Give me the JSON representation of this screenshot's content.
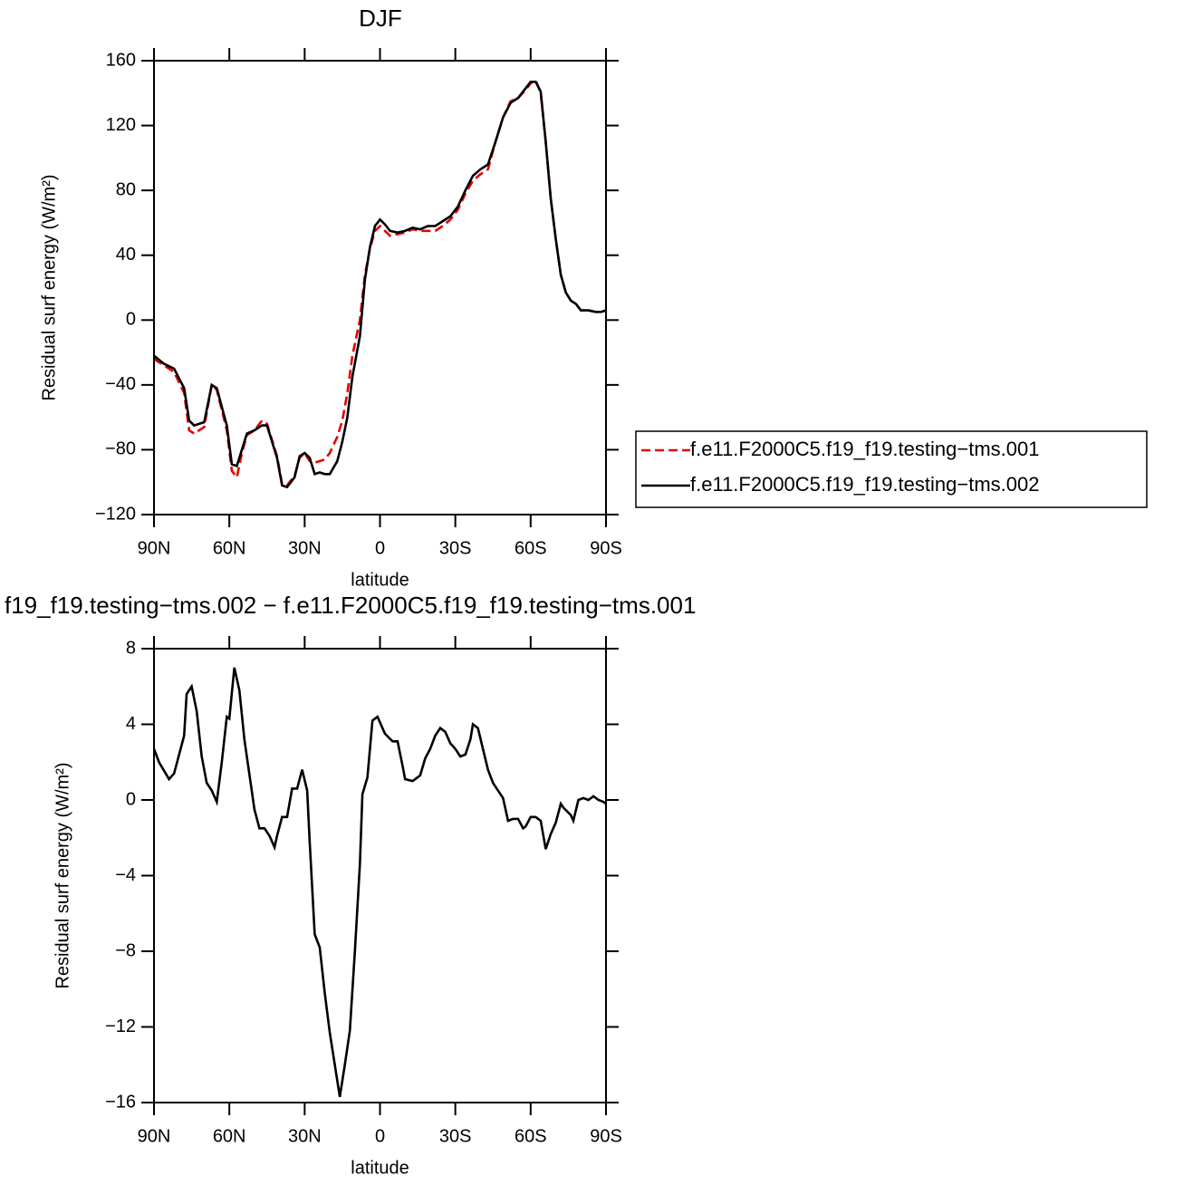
{
  "chart_data": [
    {
      "type": "line",
      "title": "DJF",
      "xlabel": "latitude",
      "ylabel": "Residual surf energy (W/m²)",
      "x": [
        90,
        86,
        82,
        78,
        76,
        74,
        70,
        67,
        65,
        61,
        59,
        57,
        55,
        53,
        50,
        47,
        45,
        41,
        39,
        37,
        34,
        32,
        30,
        28,
        26,
        24,
        22,
        20,
        17,
        15,
        13,
        11,
        8,
        6,
        4,
        2,
        0,
        -2,
        -4,
        -7,
        -10,
        -13,
        -16,
        -19,
        -22,
        -25,
        -28,
        -31,
        -34,
        -37,
        -40,
        -43,
        -46,
        -49,
        -52,
        -55,
        -58,
        -60,
        -62,
        -64,
        -66,
        -68,
        -70,
        -72,
        -74,
        -76,
        -78,
        -80,
        -83,
        -86,
        -88,
        -90
      ],
      "xlim": [
        90,
        -90
      ],
      "xticks": [
        {
          "value": 90,
          "label": "90N"
        },
        {
          "value": 60,
          "label": "60N"
        },
        {
          "value": 30,
          "label": "30N"
        },
        0,
        {
          "value": -30,
          "label": "30S"
        },
        {
          "value": -60,
          "label": "60S"
        },
        {
          "value": -90,
          "label": "90S"
        }
      ],
      "ylim": [
        -120,
        160
      ],
      "yticks": [
        {
          "value": -120,
          "label": "−120"
        },
        {
          "value": -80,
          "label": "−80"
        },
        {
          "value": -40,
          "label": "−40"
        },
        0,
        40,
        80,
        120,
        160
      ],
      "legend": "right",
      "series": [
        {
          "name": "f.e11.F2000C5.f19_f19.testing−tms.001",
          "color": "#e60000",
          "style": "dashed",
          "values": [
            -24,
            -28,
            -32,
            -45,
            -68,
            -70,
            -66,
            -40,
            -43,
            -68,
            -93,
            -97,
            -82,
            -71,
            -68,
            -62,
            -64,
            -84,
            -101,
            -102,
            -96,
            -85,
            -82,
            -87,
            -88,
            -87,
            -86,
            -82,
            -72,
            -62,
            -45,
            -22,
            0,
            28,
            44,
            55,
            58,
            55,
            52,
            53,
            54,
            56,
            55,
            55,
            55,
            58,
            62,
            68,
            78,
            86,
            90,
            93,
            110,
            125,
            135,
            137,
            142,
            146,
            148,
            140,
            110,
            75,
            50,
            28,
            17,
            12,
            10,
            6,
            6,
            5,
            5,
            6
          ]
        },
        {
          "name": "f.e11.F2000C5.f19_f19.testing−tms.002",
          "color": "#000000",
          "style": "solid",
          "values": [
            -22,
            -27,
            -30,
            -42,
            -62,
            -65,
            -63,
            -40,
            -42,
            -65,
            -89,
            -90,
            -80,
            -70,
            -68,
            -65,
            -65,
            -85,
            -102,
            -103,
            -97,
            -84,
            -82,
            -85,
            -95,
            -94,
            -95,
            -95,
            -87,
            -75,
            -60,
            -35,
            -10,
            25,
            45,
            58,
            62,
            59,
            55,
            54,
            55,
            57,
            56,
            58,
            58,
            61,
            64,
            70,
            80,
            89,
            93,
            96,
            110,
            125,
            134,
            137,
            143,
            147,
            147,
            141,
            110,
            75,
            50,
            28,
            17,
            12,
            10,
            6,
            6,
            5,
            5,
            6
          ]
        }
      ]
    },
    {
      "type": "line",
      "title": "f19_f19.testing−tms.002 − f.e11.F2000C5.f19_f19.testing−tms.001",
      "xlabel": "latitude",
      "ylabel": "Residual surf energy (W/m²)",
      "x": [
        90,
        88,
        84,
        82,
        78,
        77,
        75,
        73,
        71,
        69,
        67,
        65,
        63,
        61,
        60,
        58,
        56,
        54,
        50,
        48,
        46,
        44,
        42,
        41,
        39,
        37,
        35,
        33,
        31,
        29,
        28,
        26,
        24,
        22,
        20,
        18,
        16,
        14,
        12,
        10,
        8,
        7,
        5,
        3,
        1,
        -1,
        -2,
        -5,
        -7,
        -9,
        -10,
        -13,
        -14,
        -16,
        -18,
        -20,
        -22,
        -24,
        -26,
        -28,
        -30,
        -32,
        -34,
        -36,
        -37,
        -39,
        -41,
        -43,
        -45,
        -47,
        -49,
        -51,
        -53,
        -55,
        -57,
        -58,
        -60,
        -62,
        -64,
        -66,
        -68,
        -70,
        -72,
        -73,
        -76,
        -77,
        -79,
        -81,
        -83,
        -85,
        -87,
        -89,
        -90
      ],
      "xlim": [
        90,
        -90
      ],
      "xticks": [
        {
          "value": 90,
          "label": "90N"
        },
        {
          "value": 60,
          "label": "60N"
        },
        {
          "value": 30,
          "label": "30N"
        },
        0,
        {
          "value": -30,
          "label": "30S"
        },
        {
          "value": -60,
          "label": "60S"
        },
        {
          "value": -90,
          "label": "90S"
        }
      ],
      "ylim": [
        -16,
        8
      ],
      "yticks": [
        {
          "value": -16,
          "label": "−16"
        },
        {
          "value": -12,
          "label": "−12"
        },
        {
          "value": -8,
          "label": "−8"
        },
        {
          "value": -4,
          "label": "−4"
        },
        0,
        4,
        8
      ],
      "series": [
        {
          "color": "#000000",
          "style": "solid",
          "values": [
            2.7,
            2.0,
            1.1,
            1.4,
            3.4,
            5.6,
            6.0,
            4.7,
            2.3,
            0.9,
            0.5,
            -0.1,
            2.0,
            4.4,
            4.3,
            7.0,
            5.8,
            3.2,
            -0.5,
            -1.5,
            -1.5,
            -1.9,
            -2.5,
            -1.9,
            -0.9,
            -0.9,
            0.6,
            0.6,
            1.6,
            0.5,
            -2.2,
            -7.1,
            -7.8,
            -10.2,
            -12.3,
            -14.0,
            -15.7,
            -14.0,
            -12.2,
            -8.0,
            -3.4,
            0.3,
            1.2,
            4.2,
            4.4,
            3.8,
            3.5,
            3.1,
            3.1,
            1.8,
            1.1,
            1.0,
            1.1,
            1.3,
            2.2,
            2.7,
            3.4,
            3.8,
            3.6,
            3.0,
            2.7,
            2.3,
            2.4,
            3.2,
            4.0,
            3.8,
            2.7,
            1.6,
            0.9,
            0.5,
            0.1,
            -1.1,
            -1.0,
            -1.0,
            -1.5,
            -1.4,
            -0.9,
            -0.9,
            -1.1,
            -2.6,
            -1.8,
            -1.2,
            -0.2,
            -0.4,
            -0.8,
            -1.1,
            0.0,
            0.1,
            0.0,
            0.2,
            0.0,
            -0.1,
            -0.2
          ]
        }
      ]
    }
  ]
}
